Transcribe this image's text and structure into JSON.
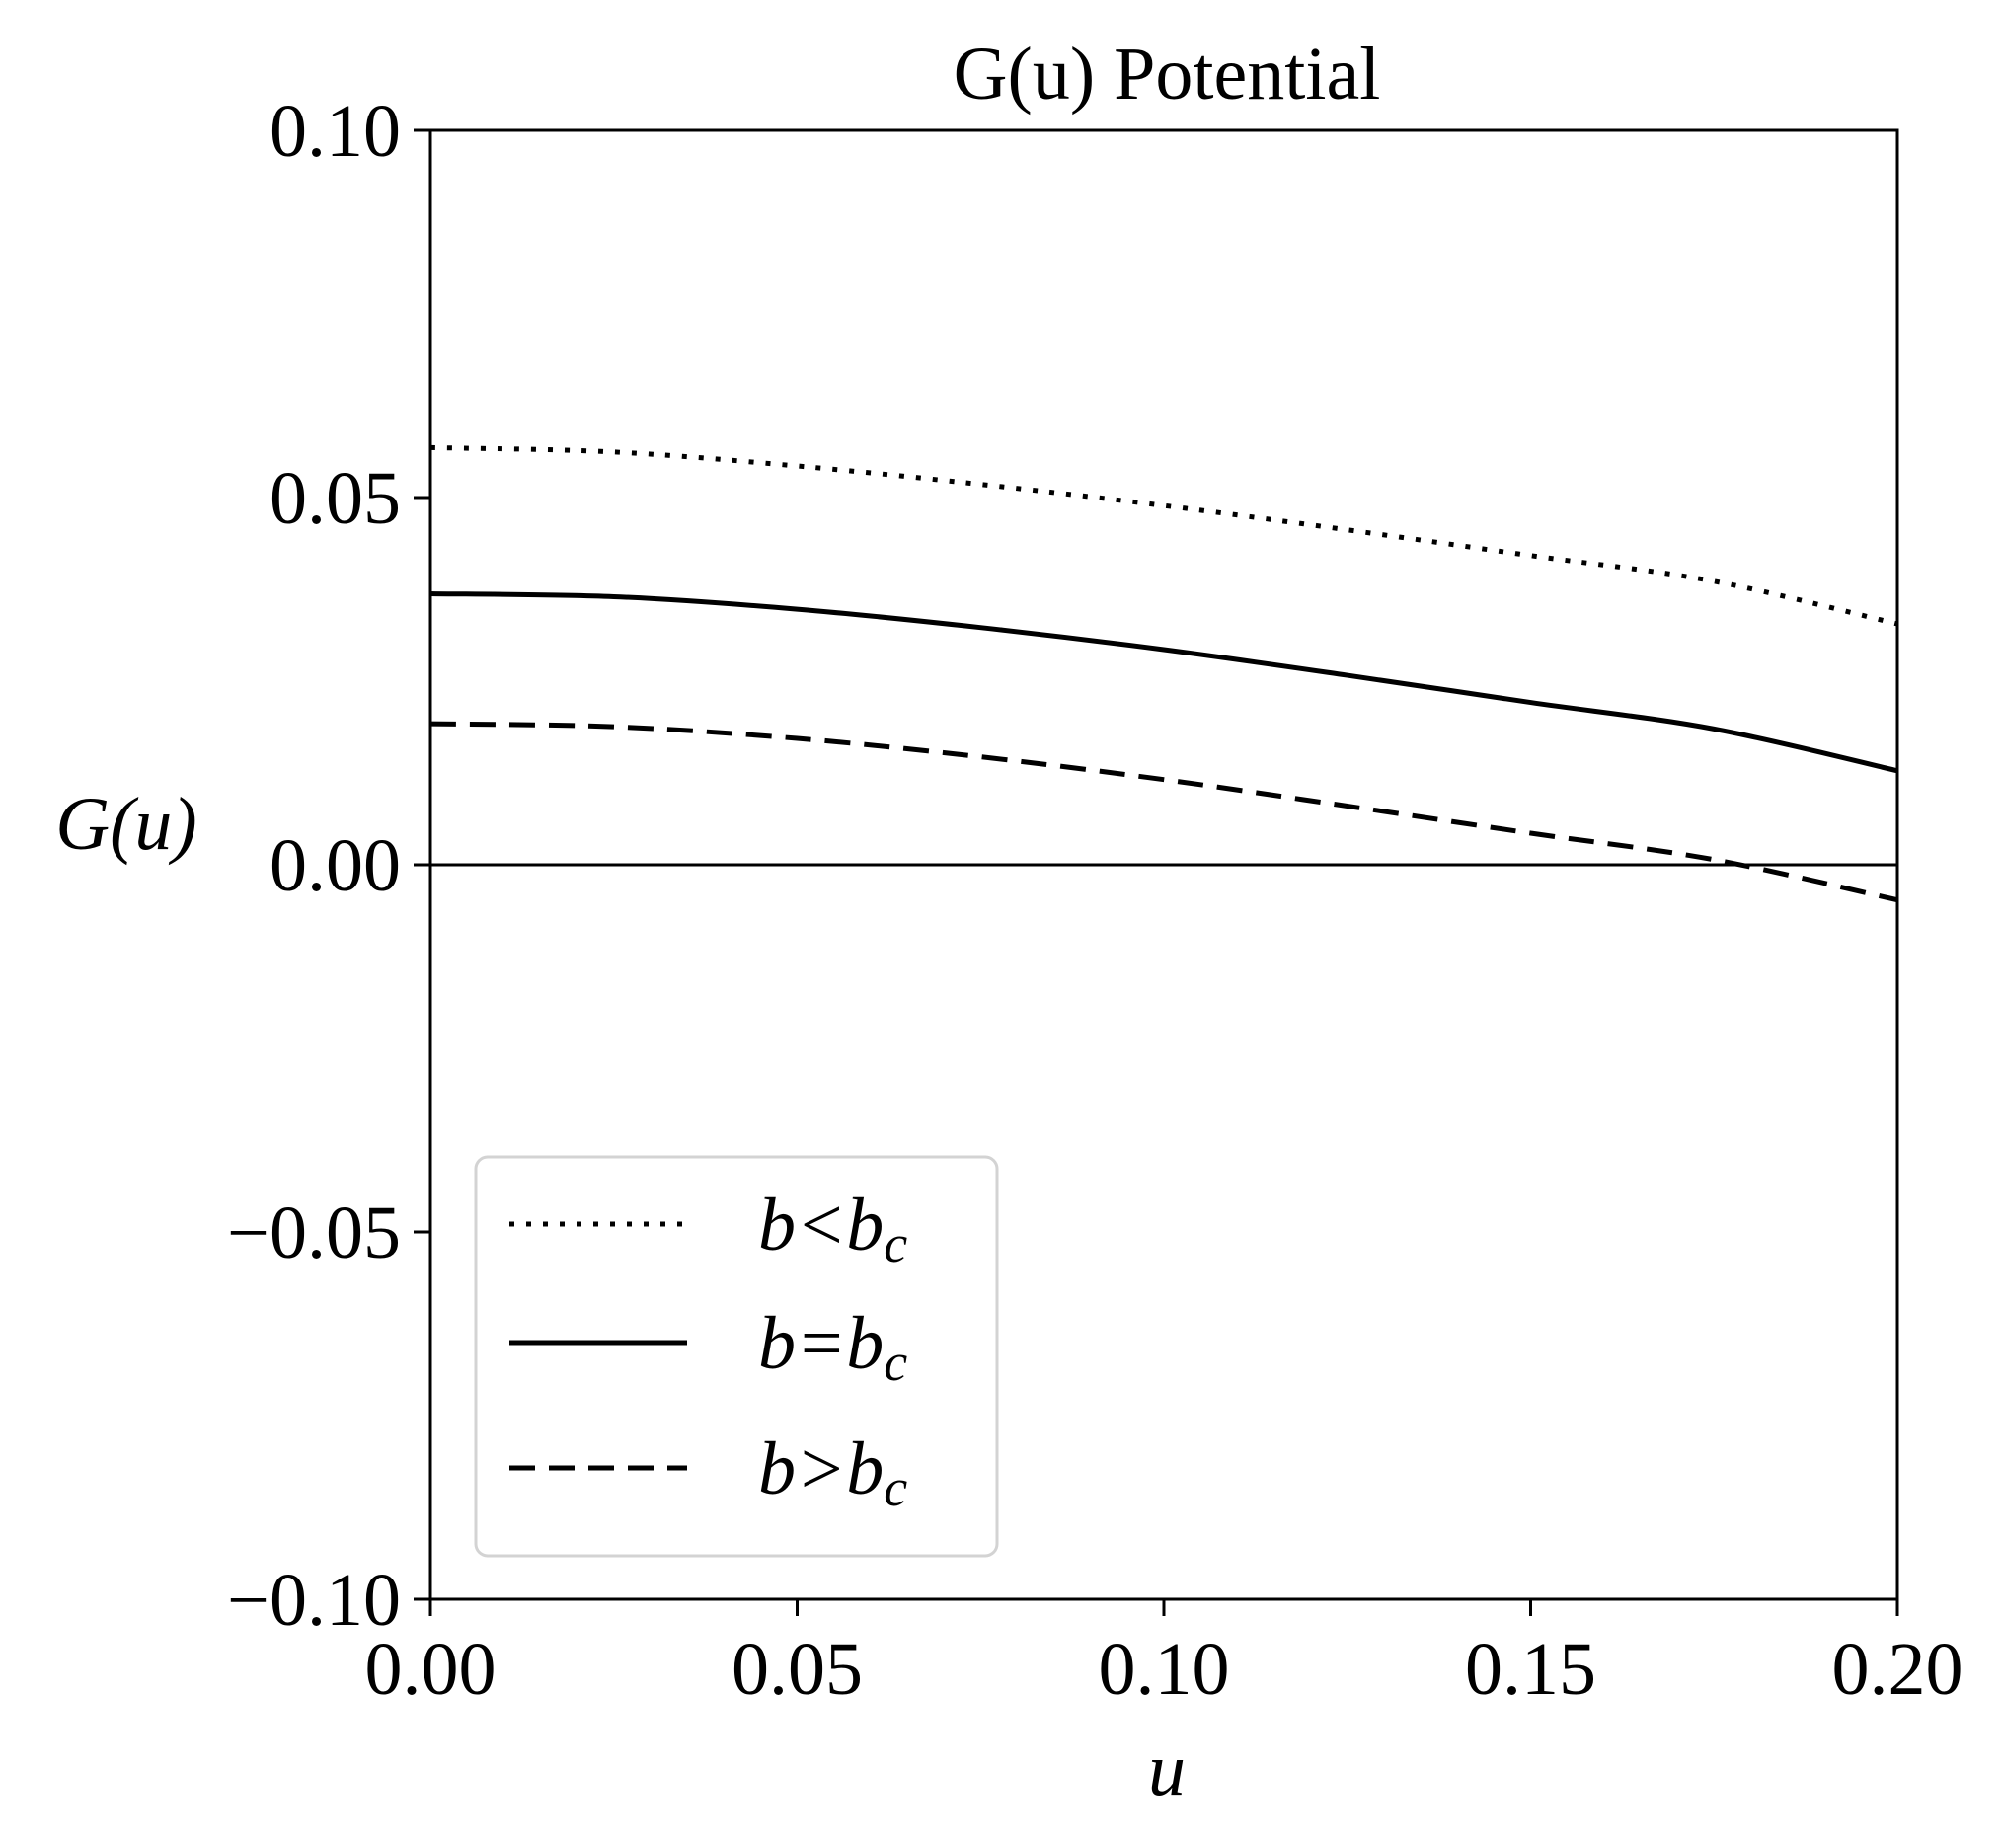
{
  "chart_data": {
    "type": "line",
    "title": "G(u) Potential",
    "xlabel": "u",
    "ylabel": "G(u)",
    "xlim": [
      0.0,
      0.2
    ],
    "ylim": [
      -0.1,
      0.1
    ],
    "xticks": [
      "0.00",
      "0.05",
      "0.10",
      "0.15",
      "0.20"
    ],
    "yticks": [
      "0.10",
      "0.05",
      "0.00",
      "−0.05",
      "−0.10"
    ],
    "xtick_values": [
      0.0,
      0.05,
      0.1,
      0.15,
      0.2
    ],
    "ytick_values": [
      0.1,
      0.05,
      0.0,
      -0.05,
      -0.1
    ],
    "grid": false,
    "zero_line": true,
    "legend_position": "lower-left",
    "x": [
      0.0,
      0.025,
      0.05,
      0.075,
      0.1,
      0.125,
      0.15,
      0.175,
      0.2
    ],
    "series": [
      {
        "name": "b < b_c",
        "legend": {
          "base": "b<b",
          "sub": "c"
        },
        "style": "dotted",
        "color": "#000000",
        "values": [
          0.0568,
          0.0562,
          0.0543,
          0.0518,
          0.0489,
          0.0456,
          0.0421,
          0.0386,
          0.0328
        ]
      },
      {
        "name": "b = b_c",
        "legend": {
          "base": "b=b",
          "sub": "c"
        },
        "style": "solid",
        "color": "#000000",
        "values": [
          0.0369,
          0.0365,
          0.0348,
          0.0323,
          0.0293,
          0.0258,
          0.0221,
          0.0185,
          0.0128
        ]
      },
      {
        "name": "b > b_c",
        "legend": {
          "base": "b>b",
          "sub": "c"
        },
        "style": "dashed",
        "color": "#000000",
        "values": [
          0.0192,
          0.0188,
          0.0172,
          0.0147,
          0.0116,
          0.008,
          0.0043,
          0.0007,
          -0.0048
        ]
      }
    ]
  }
}
